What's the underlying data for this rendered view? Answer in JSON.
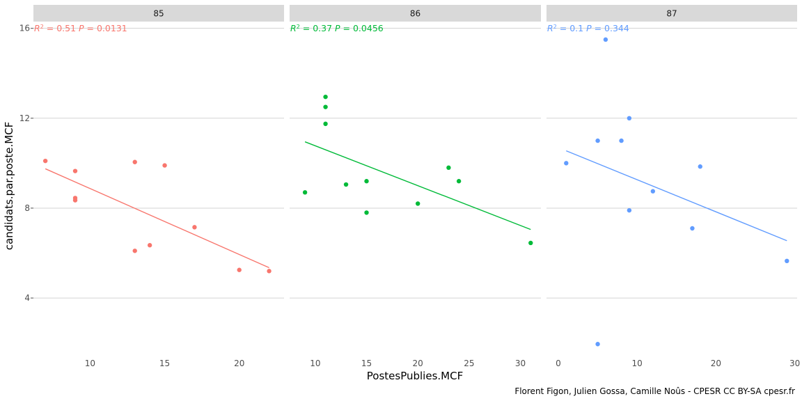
{
  "chart_data": {
    "type": "scatter",
    "xlabel": "PostesPublies.MCF",
    "ylabel": "candidats.par.poste.MCF",
    "caption": "Florent Figon, Julien Gossa, Camille Noûs - CPESR CC BY-SA cpesr.fr",
    "ylim": [
      1.4,
      16.3
    ],
    "yticks": [
      4,
      8,
      12,
      16
    ],
    "grid": true,
    "panels": [
      {
        "name": "85",
        "color": "#F8766D",
        "stat_r2": "0.51",
        "stat_p": "0.0131",
        "xlim": [
          6.2,
          23.0
        ],
        "xticks": [
          10,
          15,
          20
        ],
        "points": [
          [
            7,
            10.1
          ],
          [
            9,
            9.65
          ],
          [
            9,
            8.45
          ],
          [
            9,
            8.35
          ],
          [
            13,
            10.05
          ],
          [
            13,
            6.1
          ],
          [
            14,
            6.35
          ],
          [
            15,
            9.9
          ],
          [
            17,
            7.15
          ],
          [
            20,
            5.25
          ],
          [
            22,
            5.2
          ]
        ],
        "fit": [
          [
            7,
            9.75
          ],
          [
            22,
            5.35
          ]
        ]
      },
      {
        "name": "86",
        "color": "#00BA38",
        "stat_r2": "0.37",
        "stat_p": "0.0456",
        "xlim": [
          7.5,
          32.0
        ],
        "xticks": [
          10,
          15,
          20,
          25,
          30
        ],
        "points": [
          [
            9,
            8.7
          ],
          [
            11,
            12.95
          ],
          [
            11,
            12.5
          ],
          [
            11,
            11.75
          ],
          [
            13,
            9.05
          ],
          [
            15,
            9.2
          ],
          [
            15,
            7.8
          ],
          [
            20,
            8.2
          ],
          [
            23,
            9.8
          ],
          [
            24,
            9.2
          ],
          [
            31,
            6.45
          ]
        ],
        "fit": [
          [
            9,
            10.95
          ],
          [
            31,
            7.05
          ]
        ]
      },
      {
        "name": "87",
        "color": "#619CFF",
        "stat_r2": "0.1",
        "stat_p": "0.344",
        "xlim": [
          -1.5,
          30.3
        ],
        "xticks": [
          0,
          10,
          20,
          30
        ],
        "points": [
          [
            1,
            10.0
          ],
          [
            5,
            11.0
          ],
          [
            5,
            1.95
          ],
          [
            6,
            15.5
          ],
          [
            8,
            11.0
          ],
          [
            9,
            12.0
          ],
          [
            9,
            7.9
          ],
          [
            12,
            8.75
          ],
          [
            17,
            7.1
          ],
          [
            18,
            9.85
          ],
          [
            29,
            5.65
          ]
        ],
        "fit": [
          [
            1,
            10.55
          ],
          [
            29,
            6.55
          ]
        ]
      }
    ]
  }
}
